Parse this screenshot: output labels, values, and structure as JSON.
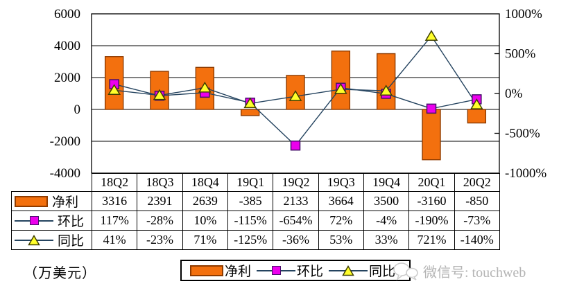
{
  "chart_data": {
    "type": "combo-bar-line",
    "categories": [
      "18Q2",
      "18Q3",
      "18Q4",
      "19Q1",
      "19Q2",
      "19Q3",
      "19Q4",
      "20Q1",
      "20Q2"
    ],
    "series": [
      {
        "key": "net-profit",
        "name": "净利",
        "type": "bar",
        "axis": "left",
        "values": [
          3316,
          2391,
          2639,
          -385,
          2133,
          3664,
          3500,
          -3160,
          -850
        ]
      },
      {
        "key": "qoq",
        "name": "环比",
        "type": "line",
        "marker": "square",
        "axis": "right",
        "values": [
          117,
          -28,
          10,
          -115,
          -654,
          72,
          -4,
          -190,
          -73
        ]
      },
      {
        "key": "yoy",
        "name": "同比",
        "type": "line",
        "marker": "triangle",
        "axis": "right",
        "values": [
          41,
          -23,
          71,
          -125,
          -36,
          53,
          33,
          721,
          -140
        ]
      }
    ],
    "left_axis": {
      "min": -4000,
      "max": 6000,
      "ticks": [
        6000,
        4000,
        2000,
        0,
        -2000,
        -4000
      ],
      "tick_labels": [
        "6000",
        "4000",
        "2000",
        "0",
        "-2000",
        "-4000"
      ],
      "gridlines": [
        4000,
        2000,
        0,
        -2000
      ]
    },
    "right_axis": {
      "min": -1000,
      "max": 1000,
      "ticks": [
        1000,
        500,
        0,
        -500,
        -1000
      ],
      "tick_labels": [
        "1000%",
        "500%",
        "0%",
        "-500%",
        "-1000%"
      ],
      "inner_ticks": [
        500,
        0,
        -500
      ]
    },
    "unit_label": "（万美元）",
    "legend_position": "bottom",
    "grid": true
  },
  "table": {
    "rows": [
      {
        "key": "net-profit",
        "label": "净利",
        "glyph": "bar",
        "values": [
          "3316",
          "2391",
          "2639",
          "-385",
          "2133",
          "3664",
          "3500",
          "-3160",
          "-850"
        ]
      },
      {
        "key": "qoq",
        "label": "环比",
        "glyph": "square",
        "values": [
          "117%",
          "-28%",
          "10%",
          "-115%",
          "-654%",
          "72%",
          "-4%",
          "-190%",
          "-73%"
        ]
      },
      {
        "key": "yoy",
        "label": "同比",
        "glyph": "triangle",
        "values": [
          "41%",
          "-23%",
          "71%",
          "-125%",
          "-36%",
          "53%",
          "33%",
          "721%",
          "-140%"
        ]
      }
    ]
  },
  "footer": {
    "unit_label": "（万美元）",
    "legend": [
      {
        "key": "net-profit",
        "label": "净利",
        "glyph": "bar"
      },
      {
        "key": "qoq",
        "label": "环比",
        "glyph": "square"
      },
      {
        "key": "yoy",
        "label": "同比",
        "glyph": "triangle"
      }
    ],
    "watermark": "微信号: touchweb"
  },
  "colors": {
    "bar_fill": "#F3700E",
    "bar_border": "#8E3B00",
    "square_fill": "#EC00EC",
    "square_border": "#46106A",
    "triangle_fill": "#FFFF2B",
    "triangle_border": "#3F3F00",
    "line": "#24435F",
    "axis": "#000000",
    "watermark_gray": "#b4b4b4"
  }
}
